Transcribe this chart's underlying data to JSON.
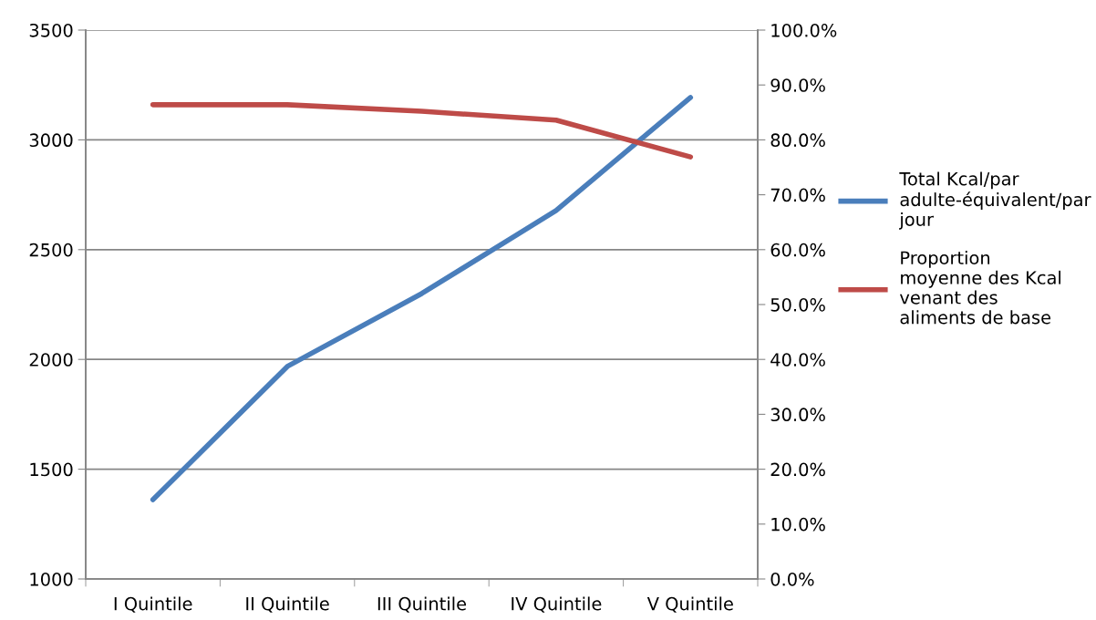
{
  "chart_data": {
    "type": "line",
    "categories": [
      "I Quintile",
      "II Quintile",
      "III Quintile",
      "IV Quintile",
      "V Quintile"
    ],
    "series": [
      {
        "name": "Total Kcal/par adulte-équivalent/par jour",
        "color": "#4a7ebb",
        "values": [
          1361,
          1968,
          2300,
          2678,
          3193
        ]
      },
      {
        "name": "Proportion moyenne des Kcal venant des aliments de base",
        "color": "#be4b48",
        "axis": "y2",
        "values": [
          86.4,
          86.4,
          85.2,
          83.6,
          76.9
        ]
      }
    ],
    "ylim": [
      1000,
      3500
    ],
    "yticks": [
      1000,
      1500,
      2000,
      2500,
      3000,
      3500
    ],
    "y2lim": [
      0,
      100
    ],
    "y2ticks": [
      {
        "value": 0,
        "label": "0.0%"
      },
      {
        "value": 10,
        "label": "10.0%"
      },
      {
        "value": 20,
        "label": "20.0%"
      },
      {
        "value": 30,
        "label": "30.0%"
      },
      {
        "value": 40,
        "label": "40.0%"
      },
      {
        "value": 50,
        "label": "50.0%"
      },
      {
        "value": 60,
        "label": "60.0%"
      },
      {
        "value": 70,
        "label": "70.0%"
      },
      {
        "value": 80,
        "label": "80.0%"
      },
      {
        "value": 90,
        "label": "90.0%"
      },
      {
        "value": 100,
        "label": "100.0%"
      }
    ],
    "grid": "y",
    "legend": "right",
    "marker": "none",
    "line_style": "solid"
  }
}
